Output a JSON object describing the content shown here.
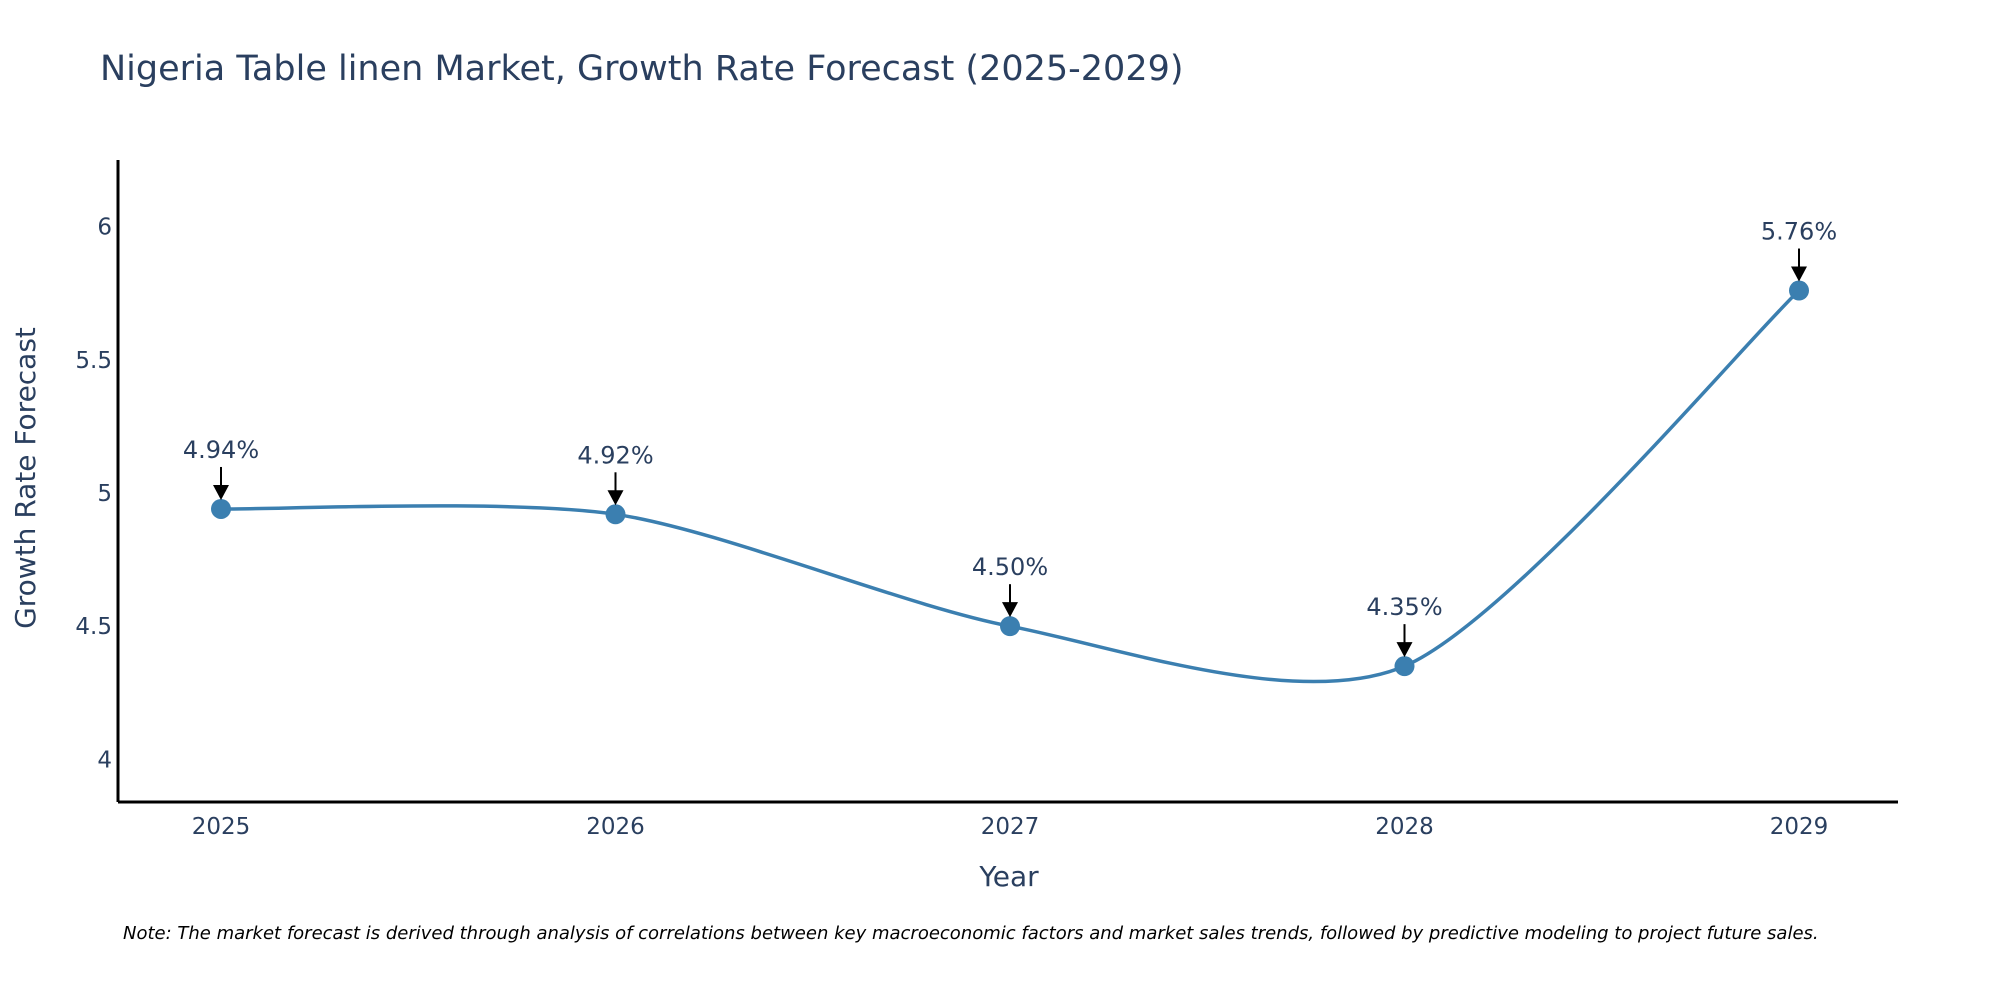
{
  "chart_data": {
    "type": "line",
    "title": "Nigeria Table linen Market, Growth Rate Forecast (2025-2029)",
    "xlabel": "Year",
    "ylabel": "Growth Rate Forecast",
    "categories": [
      "2025",
      "2026",
      "2027",
      "2028",
      "2029"
    ],
    "series": [
      {
        "name": "Growth Rate Forecast",
        "values": [
          4.94,
          4.92,
          4.5,
          4.35,
          5.76
        ],
        "labels": [
          "4.94%",
          "4.92%",
          "4.50%",
          "4.35%",
          "5.76%"
        ],
        "color": "#3b7fb0"
      }
    ],
    "ylim": [
      3.84,
      6.25
    ],
    "yticks": [
      "4",
      "4.5",
      "5",
      "5.5",
      "6"
    ],
    "line_shape": "spline",
    "grid": false,
    "note": "Note: The market forecast is derived through analysis of correlations between key macroeconomic factors and market sales trends, followed by predictive modeling to project future sales."
  },
  "colors": {
    "text": "#2a3f5f",
    "axis": "#000000",
    "series": "#3b7fb0"
  }
}
